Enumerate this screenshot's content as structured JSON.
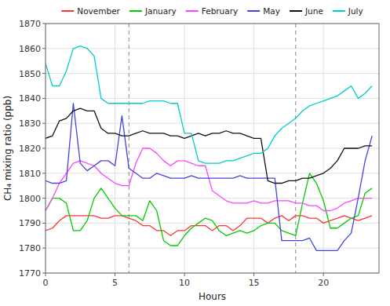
{
  "chart_data": {
    "type": "line",
    "xlabel": "Hours",
    "ylabel": "CH₄ mixing ratio (ppb)",
    "x": [
      0,
      0.5,
      1,
      1.5,
      2,
      2.5,
      3,
      3.5,
      4,
      4.5,
      5,
      5.5,
      6,
      6.5,
      7,
      7.5,
      8,
      8.5,
      9,
      9.5,
      10,
      10.5,
      11,
      11.5,
      12,
      12.5,
      13,
      13.5,
      14,
      14.5,
      15,
      15.5,
      16,
      16.5,
      17,
      17.5,
      18,
      18.5,
      19,
      19.5,
      20,
      20.5,
      21,
      21.5,
      22,
      22.5,
      23,
      23.5
    ],
    "xlim": [
      0,
      24
    ],
    "xticks": [
      0,
      5,
      10,
      15,
      20
    ],
    "ylim": [
      1770,
      1870
    ],
    "yticks": [
      1770,
      1780,
      1790,
      1800,
      1810,
      1820,
      1830,
      1840,
      1850,
      1860,
      1870
    ],
    "vlines": [
      6,
      18
    ],
    "grid": true,
    "legend": "top",
    "series": [
      {
        "name": "November",
        "color": "#ff3333",
        "values": [
          1787,
          1788,
          1791,
          1793,
          1793,
          1793,
          1793,
          1793,
          1792,
          1792,
          1793,
          1793,
          1792,
          1791,
          1789,
          1789,
          1787,
          1787,
          1785,
          1787,
          1787,
          1789,
          1789,
          1789,
          1787,
          1789,
          1789,
          1787,
          1789,
          1792,
          1792,
          1792,
          1790,
          1792,
          1793,
          1791,
          1793,
          1793,
          1792,
          1792,
          1790,
          1791,
          1792,
          1793,
          1792,
          1791,
          1792,
          1793
        ]
      },
      {
        "name": "January",
        "color": "#00cc00",
        "values": [
          1795,
          1800,
          1800,
          1798,
          1787,
          1787,
          1791,
          1800,
          1804,
          1800,
          1796,
          1793,
          1793,
          1793,
          1791,
          1799,
          1795,
          1783,
          1781,
          1781,
          1785,
          1788,
          1790,
          1792,
          1791,
          1787,
          1785,
          1786,
          1787,
          1786,
          1787,
          1789,
          1790,
          1790,
          1787,
          1786,
          1785,
          1798,
          1810,
          1806,
          1799,
          1788,
          1788,
          1790,
          1792,
          1793,
          1802,
          1804
        ]
      },
      {
        "name": "February",
        "color": "#ff44ff",
        "values": [
          1795,
          1800,
          1806,
          1810,
          1814,
          1815,
          1814,
          1813,
          1810,
          1808,
          1806,
          1805,
          1805,
          1814,
          1820,
          1820,
          1818,
          1815,
          1813,
          1815,
          1815,
          1814,
          1813,
          1813,
          1803,
          1801,
          1799,
          1798,
          1798,
          1798,
          1799,
          1798,
          1798,
          1799,
          1799,
          1799,
          1798,
          1798,
          1797,
          1797,
          1795,
          1795,
          1796,
          1798,
          1799,
          1800,
          1800,
          1800
        ]
      },
      {
        "name": "May",
        "color": "#4444dd",
        "values": [
          1807,
          1806,
          1806,
          1807,
          1838,
          1814,
          1811,
          1813,
          1815,
          1815,
          1813,
          1833,
          1812,
          1810,
          1808,
          1808,
          1810,
          1809,
          1808,
          1808,
          1808,
          1809,
          1808,
          1808,
          1808,
          1808,
          1808,
          1808,
          1809,
          1808,
          1808,
          1808,
          1808,
          1808,
          1783,
          1783,
          1783,
          1783,
          1784,
          1779,
          1779,
          1779,
          1779,
          1783,
          1786,
          1800,
          1815,
          1825
        ]
      },
      {
        "name": "June",
        "color": "#111111",
        "values": [
          1824,
          1825,
          1831,
          1832,
          1835,
          1836,
          1835,
          1835,
          1828,
          1826,
          1826,
          1825,
          1825,
          1826,
          1827,
          1826,
          1826,
          1826,
          1825,
          1825,
          1824,
          1825,
          1826,
          1825,
          1826,
          1826,
          1827,
          1826,
          1826,
          1825,
          1824,
          1824,
          1807,
          1806,
          1806,
          1807,
          1807,
          1808,
          1808,
          1809,
          1810,
          1812,
          1815,
          1820,
          1820,
          1820,
          1821,
          1821
        ]
      },
      {
        "name": "July",
        "color": "#00cccc",
        "values": [
          1854,
          1845,
          1845,
          1851,
          1860,
          1861,
          1860,
          1857,
          1840,
          1838,
          1838,
          1838,
          1838,
          1838,
          1838,
          1839,
          1839,
          1839,
          1838,
          1838,
          1826,
          1826,
          1815,
          1814,
          1814,
          1814,
          1815,
          1815,
          1816,
          1817,
          1818,
          1818,
          1820,
          1825,
          1828,
          1830,
          1832,
          1835,
          1837,
          1838,
          1839,
          1840,
          1841,
          1843,
          1845,
          1840,
          1842,
          1845
        ]
      }
    ]
  }
}
